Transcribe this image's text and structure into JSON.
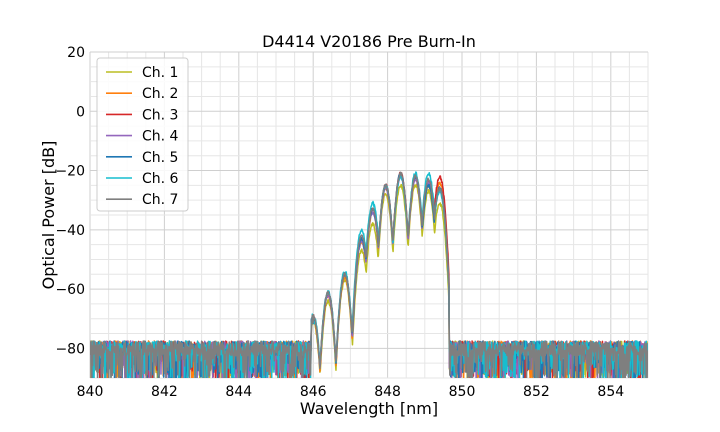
{
  "chart_data": {
    "type": "line",
    "title": "D4414 V20186 Pre Burn-In",
    "xlabel": "Wavelength [nm]",
    "ylabel": "Optical Power [dB]",
    "xlim": [
      840,
      855
    ],
    "ylim": [
      -90,
      20
    ],
    "xticks": [
      "840",
      "842",
      "844",
      "846",
      "848",
      "850",
      "852",
      "854"
    ],
    "yticks": [
      "20",
      "0",
      "−20",
      "−40",
      "−60",
      "−80"
    ],
    "grid": true,
    "legend_position": "top-left",
    "noise_floor_db": -80,
    "passband_nm": [
      846.0,
      849.6
    ],
    "series": [
      {
        "name": "Ch. 1",
        "color": "#bcbd22",
        "peaks": [
          [
            846.0,
            -71
          ],
          [
            846.4,
            -64
          ],
          [
            846.85,
            -57
          ],
          [
            847.3,
            -47
          ],
          [
            847.6,
            -38
          ],
          [
            847.95,
            -28
          ],
          [
            848.35,
            -25
          ],
          [
            848.75,
            -25
          ],
          [
            849.1,
            -27
          ],
          [
            849.4,
            -31
          ]
        ]
      },
      {
        "name": "Ch. 2",
        "color": "#ff7f0e",
        "peaks": [
          [
            846.0,
            -70
          ],
          [
            846.4,
            -62
          ],
          [
            846.85,
            -56
          ],
          [
            847.3,
            -44
          ],
          [
            847.6,
            -34
          ],
          [
            847.95,
            -26
          ],
          [
            848.35,
            -22
          ],
          [
            848.75,
            -23
          ],
          [
            849.1,
            -25
          ],
          [
            849.4,
            -24
          ]
        ]
      },
      {
        "name": "Ch. 3",
        "color": "#d62728",
        "peaks": [
          [
            846.0,
            -69
          ],
          [
            846.4,
            -62
          ],
          [
            846.85,
            -55
          ],
          [
            847.3,
            -43
          ],
          [
            847.6,
            -33
          ],
          [
            847.95,
            -25
          ],
          [
            848.35,
            -21
          ],
          [
            848.75,
            -22
          ],
          [
            849.1,
            -24
          ],
          [
            849.4,
            -22
          ]
        ]
      },
      {
        "name": "Ch. 4",
        "color": "#9467bd",
        "peaks": [
          [
            846.0,
            -69
          ],
          [
            846.4,
            -62
          ],
          [
            846.85,
            -55
          ],
          [
            847.3,
            -44
          ],
          [
            847.6,
            -34
          ],
          [
            847.95,
            -26
          ],
          [
            848.35,
            -22
          ],
          [
            848.75,
            -23
          ],
          [
            849.1,
            -24
          ],
          [
            849.4,
            -26
          ]
        ]
      },
      {
        "name": "Ch. 5",
        "color": "#1f77b4",
        "peaks": [
          [
            846.0,
            -69
          ],
          [
            846.4,
            -61
          ],
          [
            846.85,
            -55
          ],
          [
            847.3,
            -43
          ],
          [
            847.6,
            -33
          ],
          [
            847.95,
            -25
          ],
          [
            848.35,
            -21
          ],
          [
            848.75,
            -22
          ],
          [
            849.1,
            -25
          ],
          [
            849.4,
            -26
          ]
        ]
      },
      {
        "name": "Ch. 6",
        "color": "#17becf",
        "peaks": [
          [
            846.0,
            -68
          ],
          [
            846.4,
            -61
          ],
          [
            846.85,
            -54
          ],
          [
            847.3,
            -40
          ],
          [
            847.6,
            -31
          ],
          [
            847.95,
            -25
          ],
          [
            848.35,
            -22
          ],
          [
            848.75,
            -21
          ],
          [
            849.1,
            -21
          ],
          [
            849.4,
            -27
          ]
        ]
      },
      {
        "name": "Ch. 7",
        "color": "#7f7f7f",
        "peaks": [
          [
            846.0,
            -69
          ],
          [
            846.4,
            -61
          ],
          [
            846.85,
            -55
          ],
          [
            847.3,
            -42
          ],
          [
            847.6,
            -33
          ],
          [
            847.95,
            -25
          ],
          [
            848.35,
            -21
          ],
          [
            848.75,
            -22
          ],
          [
            849.1,
            -23
          ],
          [
            849.4,
            -26
          ]
        ]
      }
    ]
  }
}
